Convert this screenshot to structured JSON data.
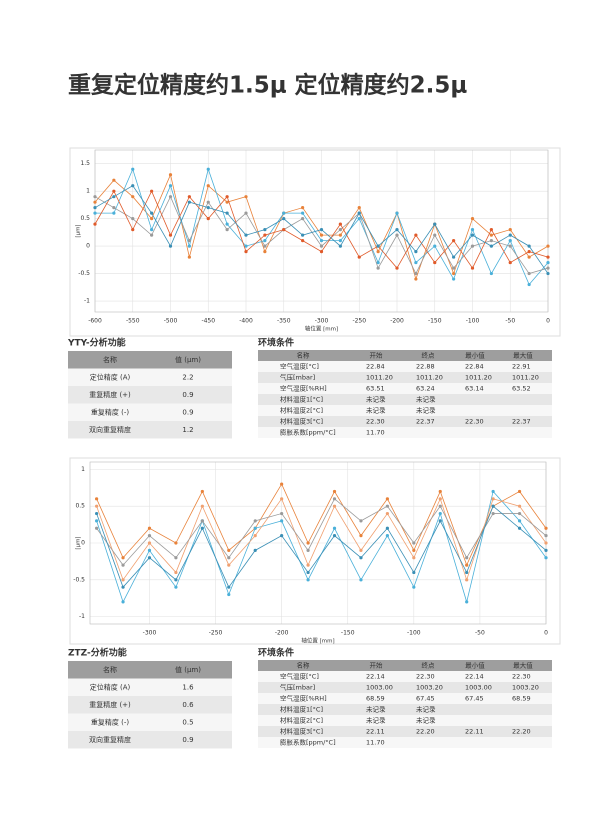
{
  "title": "重复定位精度约1.5μ 定位精度约2.5μ",
  "chart_data": [
    {
      "type": "line",
      "xlabel": "轴位置 [mm]",
      "ylabel": "[μm]",
      "xlim": [
        -600,
        0
      ],
      "xticks": [
        -600,
        -550,
        -500,
        -450,
        -400,
        -350,
        -300,
        -250,
        -200,
        -150,
        -100,
        -50,
        0
      ],
      "ylim": [
        -1.2,
        1.75
      ],
      "yticks": [
        -1,
        -0.5,
        0,
        0.5,
        1,
        1.5
      ],
      "grid": true,
      "x": [
        -600,
        -575,
        -550,
        -525,
        -500,
        -475,
        -450,
        -425,
        -400,
        -375,
        -350,
        -325,
        -300,
        -275,
        -250,
        -225,
        -200,
        -175,
        -150,
        -125,
        -100,
        -75,
        -50,
        -25,
        0
      ],
      "series": [
        {
          "color": "#e8823a",
          "values": [
            0.8,
            1.2,
            0.9,
            0.5,
            1.3,
            -0.2,
            1.1,
            0.8,
            0.9,
            -0.1,
            0.6,
            0.7,
            0.2,
            0.2,
            0.7,
            -0.1,
            0.6,
            -0.6,
            0.4,
            -0.5,
            0.5,
            0.2,
            0.3,
            -0.2,
            0.0
          ]
        },
        {
          "color": "#4ab0d9",
          "values": [
            0.6,
            0.6,
            1.4,
            0.3,
            1.1,
            0.0,
            1.4,
            0.4,
            0.0,
            0.1,
            0.6,
            0.6,
            0.1,
            0.1,
            0.5,
            -0.3,
            0.6,
            -0.3,
            0.0,
            -0.6,
            0.3,
            -0.5,
            0.1,
            -0.7,
            -0.3
          ]
        },
        {
          "color": "#9a9a9a",
          "values": [
            0.9,
            0.7,
            0.5,
            0.2,
            0.9,
            0.1,
            0.8,
            0.3,
            0.6,
            0.0,
            0.3,
            0.5,
            0.0,
            0.3,
            0.6,
            -0.4,
            0.2,
            -0.5,
            0.2,
            -0.4,
            0.0,
            0.1,
            0.0,
            -0.5,
            -0.4
          ]
        },
        {
          "color": "#e05a2a",
          "values": [
            0.4,
            1.0,
            0.3,
            1.0,
            0.2,
            0.9,
            0.5,
            0.9,
            -0.1,
            0.2,
            0.3,
            0.1,
            -0.1,
            0.4,
            -0.2,
            0.0,
            -0.4,
            0.2,
            -0.3,
            0.1,
            -0.4,
            0.3,
            -0.3,
            -0.1,
            -0.2
          ]
        },
        {
          "color": "#3a8fb5",
          "values": [
            0.7,
            0.9,
            1.1,
            0.6,
            0.0,
            0.8,
            0.7,
            0.6,
            0.2,
            0.3,
            0.5,
            0.2,
            0.3,
            0.0,
            0.6,
            0.0,
            0.3,
            -0.1,
            0.4,
            -0.2,
            0.2,
            0.0,
            0.2,
            0.0,
            -0.5
          ]
        }
      ]
    },
    {
      "type": "line",
      "xlabel": "轴位置 [mm]",
      "ylabel": "[μm]",
      "xlim": [
        -345,
        0
      ],
      "xticks": [
        -300,
        -250,
        -200,
        -150,
        -100,
        -50,
        0
      ],
      "ylim": [
        -1.1,
        1.1
      ],
      "yticks": [
        -1,
        -0.5,
        0,
        0.5,
        1
      ],
      "grid": true,
      "x": [
        -340,
        -320,
        -300,
        -280,
        -260,
        -240,
        -220,
        -200,
        -180,
        -160,
        -140,
        -120,
        -100,
        -80,
        -60,
        -40,
        -20,
        0
      ],
      "series": [
        {
          "color": "#e8823a",
          "values": [
            0.6,
            -0.2,
            0.2,
            0.0,
            0.7,
            -0.1,
            0.2,
            0.8,
            0.0,
            0.7,
            0.1,
            0.6,
            -0.1,
            0.7,
            -0.3,
            0.5,
            0.7,
            0.2
          ]
        },
        {
          "color": "#4ab0d9",
          "values": [
            0.3,
            -0.8,
            -0.1,
            -0.6,
            0.3,
            -0.7,
            0.2,
            0.3,
            -0.5,
            0.2,
            -0.5,
            0.1,
            -0.6,
            0.4,
            -0.8,
            0.7,
            0.3,
            -0.2
          ]
        },
        {
          "color": "#f0a070",
          "values": [
            0.5,
            -0.5,
            0.0,
            -0.4,
            0.5,
            -0.3,
            0.1,
            0.6,
            -0.3,
            0.5,
            -0.1,
            0.4,
            -0.2,
            0.6,
            -0.5,
            0.6,
            0.5,
            0.0
          ]
        },
        {
          "color": "#9a9a9a",
          "values": [
            0.2,
            -0.3,
            0.1,
            -0.2,
            0.3,
            -0.2,
            0.3,
            0.4,
            -0.1,
            0.6,
            0.3,
            0.5,
            0.0,
            0.5,
            -0.2,
            0.4,
            0.4,
            0.1
          ]
        },
        {
          "color": "#3a8fb5",
          "values": [
            0.4,
            -0.6,
            -0.2,
            -0.5,
            0.2,
            -0.6,
            -0.1,
            0.1,
            -0.4,
            0.1,
            -0.2,
            0.2,
            -0.4,
            0.3,
            -0.4,
            0.5,
            0.2,
            -0.1
          ]
        }
      ]
    }
  ],
  "sections": [
    {
      "analysis_title": "YTY-分析功能",
      "analysis_table": {
        "header": [
          "名称",
          "值 (μm)"
        ],
        "rows": [
          [
            "定位精度 (A)",
            "2.2"
          ],
          [
            "重复精度 (+)",
            "0.9"
          ],
          [
            "重复精度 (-)",
            "0.9"
          ],
          [
            "双向重复精度",
            "1.2"
          ]
        ]
      },
      "env_title": "环境条件",
      "env_table": {
        "header": [
          "名称",
          "开始",
          "终点",
          "最小值",
          "最大值"
        ],
        "rows": [
          [
            "空气温度[°C]",
            "22.84",
            "22.88",
            "22.84",
            "22.91"
          ],
          [
            "气压[mbar]",
            "1011.20",
            "1011.20",
            "1011.20",
            "1011.20"
          ],
          [
            "空气湿度[%RH]",
            "63.51",
            "63.24",
            "63.14",
            "63.52"
          ],
          [
            "材料温度1[°C]",
            "未记录",
            "未记录"
          ],
          [
            "材料温度2[°C]",
            "未记录",
            "未记录"
          ],
          [
            "材料温度3[°C]",
            "22.30",
            "22.37",
            "22.30",
            "22.37"
          ],
          [
            "膨胀系数[ppm/°C]",
            "11.70"
          ]
        ]
      }
    },
    {
      "analysis_title": "ZTZ-分析功能",
      "analysis_table": {
        "header": [
          "名称",
          "值 (μm)"
        ],
        "rows": [
          [
            "定位精度 (A)",
            "1.6"
          ],
          [
            "重复精度 (+)",
            "0.6"
          ],
          [
            "重复精度 (-)",
            "0.5"
          ],
          [
            "双向重复精度",
            "0.9"
          ]
        ]
      },
      "env_title": "环境条件",
      "env_table": {
        "header": [
          "名称",
          "开始",
          "终点",
          "最小值",
          "最大值"
        ],
        "rows": [
          [
            "空气温度[°C]",
            "22.14",
            "22.30",
            "22.14",
            "22.30"
          ],
          [
            "气压[mbar]",
            "1003.00",
            "1003.20",
            "1003.00",
            "1003.20"
          ],
          [
            "空气湿度[%RH]",
            "68.59",
            "67.45",
            "67.45",
            "68.59"
          ],
          [
            "材料温度1[°C]",
            "未记录",
            "未记录"
          ],
          [
            "材料温度2[°C]",
            "未记录",
            "未记录"
          ],
          [
            "材料温度3[°C]",
            "22.11",
            "22.20",
            "22.11",
            "22.20"
          ],
          [
            "膨胀系数[ppm/°C]",
            "11.70"
          ]
        ]
      }
    }
  ]
}
